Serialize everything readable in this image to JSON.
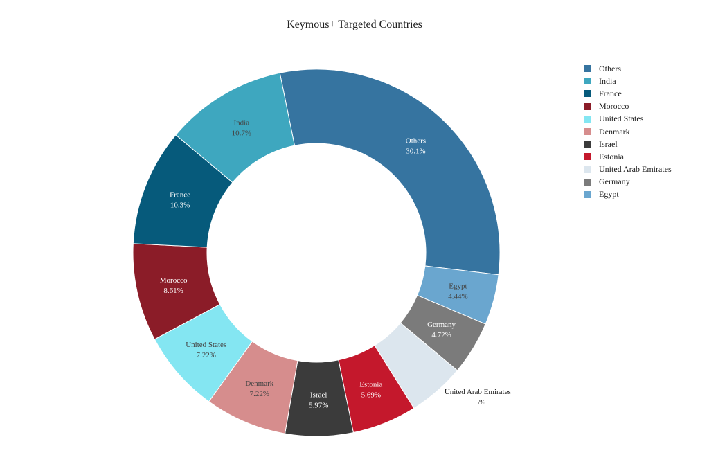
{
  "chart_data": {
    "type": "pie",
    "donut": true,
    "title": "Keymous+ Targeted Countries",
    "legend_position": "top-right",
    "slices": [
      {
        "label": "Others",
        "value": 30.1,
        "value_label": "30.1%",
        "color": "#3674a0",
        "text_color": "#ffffff",
        "label_outside": false
      },
      {
        "label": "Egypt",
        "value": 4.44,
        "value_label": "4.44%",
        "color": "#6aa6cf",
        "text_color": "#444444",
        "label_outside": false
      },
      {
        "label": "Germany",
        "value": 4.72,
        "value_label": "4.72%",
        "color": "#7b7b7b",
        "text_color": "#ffffff",
        "label_outside": false
      },
      {
        "label": "United Arab Emirates",
        "value": 5,
        "value_label": "5%",
        "color": "#dce6ee",
        "text_color": "#222222",
        "label_outside": true
      },
      {
        "label": "Estonia",
        "value": 5.69,
        "value_label": "5.69%",
        "color": "#c4182c",
        "text_color": "#ffffff",
        "label_outside": false
      },
      {
        "label": "Israel",
        "value": 5.97,
        "value_label": "5.97%",
        "color": "#3b3b3b",
        "text_color": "#ffffff",
        "label_outside": false
      },
      {
        "label": "Denmark",
        "value": 7.22,
        "value_label": "7.22%",
        "color": "#d68d8d",
        "text_color": "#444444",
        "label_outside": false
      },
      {
        "label": "United States",
        "value": 7.22,
        "value_label": "7.22%",
        "color": "#84e6f2",
        "text_color": "#444444",
        "label_outside": false
      },
      {
        "label": "Morocco",
        "value": 8.61,
        "value_label": "8.61%",
        "color": "#8b1c28",
        "text_color": "#ffffff",
        "label_outside": false
      },
      {
        "label": "France",
        "value": 10.3,
        "value_label": "10.3%",
        "color": "#065a7b",
        "text_color": "#ffffff",
        "label_outside": false
      },
      {
        "label": "India",
        "value": 10.7,
        "value_label": "10.7%",
        "color": "#3ea7bf",
        "text_color": "#444444",
        "label_outside": false
      }
    ],
    "legend": [
      "Others",
      "India",
      "France",
      "Morocco",
      "United States",
      "Denmark",
      "Israel",
      "Estonia",
      "United Arab Emirates",
      "Germany",
      "Egypt"
    ]
  }
}
